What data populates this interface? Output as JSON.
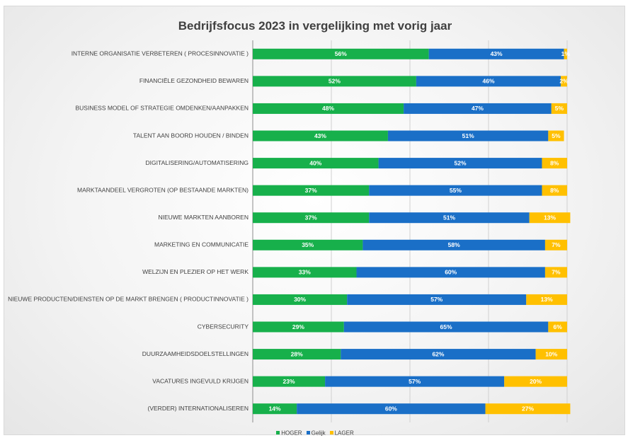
{
  "chart_data": {
    "type": "bar",
    "orientation": "horizontal",
    "stacked": true,
    "title": "Bedrijfsfocus 2023 in vergelijking met vorig jaar",
    "categories": [
      "INTERNE ORGANISATIE VERBETEREN ( PROCESINNOVATIE )",
      "FINANCIËLE GEZONDHEID BEWAREN",
      "BUSINESS MODEL OF STRATEGIE OMDENKEN/AANPAKKEN",
      "TALENT AAN BOORD HOUDEN / BINDEN",
      "DIGITALISERING/AUTOMATISERING",
      "MARKTAANDEEL VERGROTEN (OP BESTAANDE MARKTEN)",
      "NIEUWE MARKTEN AANBOREN",
      "MARKETING EN COMMUNICATIE",
      "WELZIJN EN PLEZIER OP HET WERK",
      "NIEUWE PRODUCTEN/DIENSTEN OP DE MARKT BRENGEN ( PRODUCTINNOVATIE )",
      "CYBERSECURITY",
      "DUURZAAMHEIDSDOELSTELLINGEN",
      "VACATURES INGEVULD KRIJGEN",
      "(VERDER) INTERNATIONALISEREN"
    ],
    "series": [
      {
        "name": "HOGER",
        "color": "#17b04b",
        "values": [
          56,
          52,
          48,
          43,
          40,
          37,
          37,
          35,
          33,
          30,
          29,
          28,
          23,
          14
        ]
      },
      {
        "name": "Gelijk",
        "color": "#1a6fc7",
        "values": [
          43,
          46,
          47,
          51,
          52,
          55,
          51,
          58,
          60,
          57,
          65,
          62,
          57,
          60
        ]
      },
      {
        "name": "LAGER",
        "color": "#ffc000",
        "values": [
          1,
          2,
          5,
          5,
          8,
          8,
          13,
          7,
          7,
          13,
          6,
          10,
          20,
          27
        ]
      }
    ],
    "xlim": [
      0,
      100
    ],
    "grid": "vertical",
    "legend_position": "bottom"
  }
}
